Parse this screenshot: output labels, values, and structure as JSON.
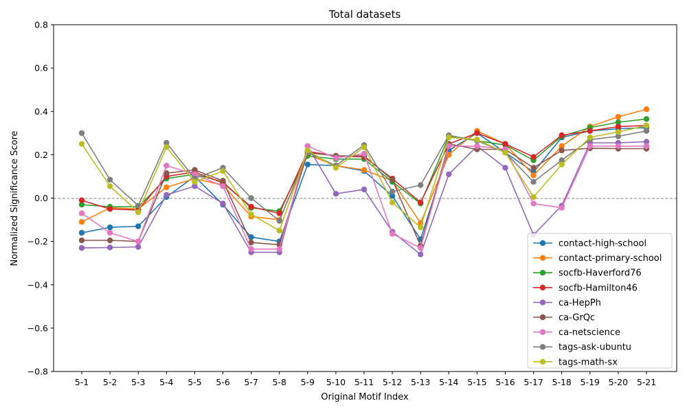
{
  "chart_data": {
    "type": "line",
    "title": "Total datasets",
    "xlabel": "Original Motif Index",
    "ylabel": "Normalized Significance Score",
    "ylim": [
      -0.8,
      0.8
    ],
    "yticks": [
      "−0.8",
      "−0.6",
      "−0.4",
      "−0.2",
      "0.0",
      "0.2",
      "0.4",
      "0.6",
      "0.8"
    ],
    "reference_line": 0.0,
    "legend_position": "lower-right",
    "grid": false,
    "categories": [
      "5-1",
      "5-2",
      "5-3",
      "5-4",
      "5-5",
      "5-6",
      "5-7",
      "5-8",
      "5-9",
      "5-10",
      "5-11",
      "5-12",
      "5-13",
      "5-14",
      "5-15",
      "5-16",
      "5-17",
      "5-18",
      "5-19",
      "5-20",
      "5-21"
    ],
    "series": [
      {
        "name": "contact-high-school",
        "color": "#1f77b4",
        "values": [
          -0.16,
          -0.135,
          -0.13,
          0.005,
          0.1,
          -0.03,
          -0.18,
          -0.2,
          0.155,
          0.15,
          0.125,
          0.01,
          -0.19,
          0.22,
          0.3,
          0.21,
          0.12,
          0.28,
          0.31,
          0.32,
          0.325
        ]
      },
      {
        "name": "contact-primary-school",
        "color": "#ff7f0e",
        "values": [
          -0.11,
          -0.045,
          -0.05,
          0.05,
          0.09,
          0.06,
          -0.085,
          -0.1,
          0.2,
          0.15,
          0.13,
          0.08,
          -0.115,
          0.2,
          0.31,
          0.25,
          0.105,
          0.24,
          0.33,
          0.375,
          0.41
        ]
      },
      {
        "name": "socfb-Haverford76",
        "color": "#2ca02c",
        "values": [
          -0.03,
          -0.04,
          -0.04,
          0.09,
          0.11,
          0.075,
          -0.045,
          -0.06,
          0.195,
          0.18,
          0.18,
          0.075,
          -0.025,
          0.285,
          0.265,
          0.245,
          0.175,
          0.285,
          0.325,
          0.35,
          0.365
        ]
      },
      {
        "name": "socfb-Hamilton46",
        "color": "#d62728",
        "values": [
          -0.01,
          -0.05,
          -0.055,
          0.1,
          0.12,
          0.07,
          -0.04,
          -0.07,
          0.215,
          0.195,
          0.19,
          0.09,
          -0.02,
          0.25,
          0.3,
          0.25,
          0.19,
          0.29,
          0.31,
          0.33,
          0.335
        ]
      },
      {
        "name": "ca-HepPh",
        "color": "#9467bd",
        "values": [
          -0.23,
          -0.228,
          -0.225,
          0.015,
          0.055,
          -0.025,
          -0.25,
          -0.25,
          0.24,
          0.02,
          0.04,
          -0.155,
          -0.26,
          0.11,
          0.24,
          0.14,
          -0.17,
          -0.035,
          0.255,
          0.255,
          0.26
        ]
      },
      {
        "name": "ca-GrQc",
        "color": "#8c564b",
        "values": [
          -0.195,
          -0.195,
          -0.2,
          0.115,
          0.13,
          0.08,
          -0.205,
          -0.215,
          0.21,
          0.195,
          0.195,
          0.085,
          -0.22,
          0.25,
          0.225,
          0.225,
          0.14,
          0.22,
          0.23,
          0.228,
          0.228
        ]
      },
      {
        "name": "ca-netscience",
        "color": "#e377c2",
        "values": [
          -0.07,
          -0.16,
          -0.2,
          0.15,
          0.11,
          0.055,
          -0.235,
          -0.235,
          0.24,
          0.185,
          0.205,
          -0.165,
          -0.23,
          0.24,
          0.24,
          0.225,
          -0.025,
          -0.045,
          0.24,
          0.24,
          0.24
        ]
      },
      {
        "name": "tags-ask-ubuntu",
        "color": "#7f7f7f",
        "values": [
          0.3,
          0.085,
          -0.035,
          0.255,
          0.09,
          0.14,
          0.0,
          -0.105,
          0.21,
          0.15,
          0.245,
          0.03,
          0.06,
          0.29,
          0.265,
          0.21,
          0.075,
          0.175,
          0.27,
          0.285,
          0.31
        ]
      },
      {
        "name": "tags-math-sx",
        "color": "#bcbd22",
        "values": [
          0.25,
          0.055,
          -0.065,
          0.235,
          0.075,
          0.125,
          -0.075,
          -0.15,
          0.22,
          0.14,
          0.235,
          -0.02,
          -0.135,
          0.28,
          0.27,
          0.21,
          0.005,
          0.155,
          0.28,
          0.305,
          0.335
        ]
      }
    ]
  }
}
